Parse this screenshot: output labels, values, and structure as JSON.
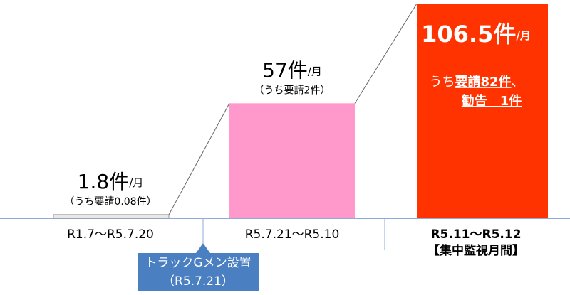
{
  "chart_data": {
    "type": "bar",
    "categories": [
      "R1.7～R5.7.20",
      "R5.7.21～R5.10",
      "R5.11～R5.12"
    ],
    "period_note": "【集中監視月間】",
    "values": [
      1.8,
      57,
      106.5
    ],
    "unit": "件",
    "per": "/月",
    "colors": [
      "#e8e8e8",
      "#ff99cc",
      "#ff3300"
    ],
    "notes": [
      "（うち要請0.08件）",
      "（うち要請2件）"
    ],
    "highlight_note": {
      "open": "うち",
      "request": "要請82件",
      "sep": "、",
      "warning": "勧告　1件"
    },
    "callout": {
      "title": "トラックGメン設置",
      "date": "（R5.7.21）"
    }
  }
}
